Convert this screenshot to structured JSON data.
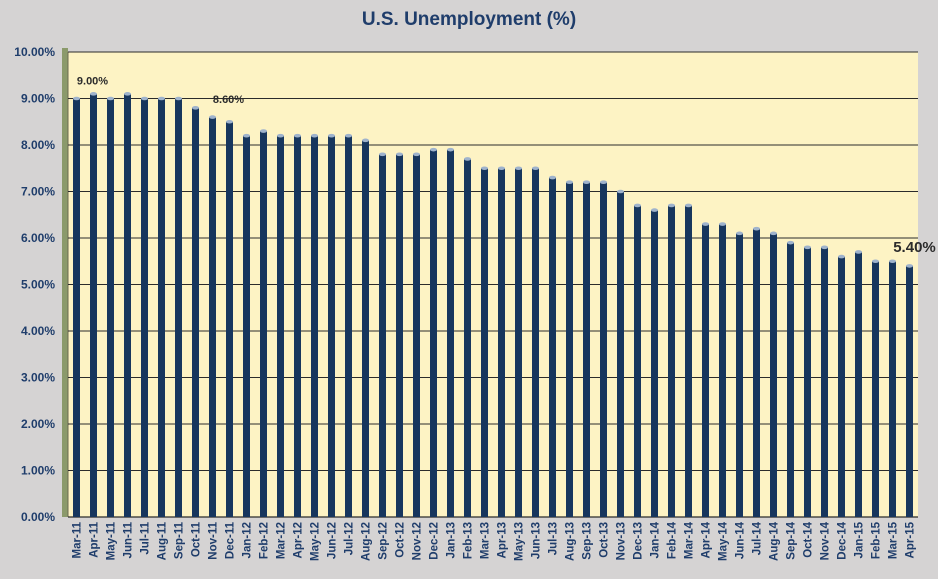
{
  "chart_data": {
    "type": "bar",
    "title": "U.S. Unemployment (%)",
    "xlabel": "",
    "ylabel": "",
    "ylim": [
      0,
      10
    ],
    "yticks": [
      {
        "value": 0,
        "label": "0.00%"
      },
      {
        "value": 1,
        "label": "1.00%"
      },
      {
        "value": 2,
        "label": "2.00%"
      },
      {
        "value": 3,
        "label": "3.00%"
      },
      {
        "value": 4,
        "label": "4.00%"
      },
      {
        "value": 5,
        "label": "5.00%"
      },
      {
        "value": 6,
        "label": "6.00%"
      },
      {
        "value": 7,
        "label": "7.00%"
      },
      {
        "value": 8,
        "label": "8.00%"
      },
      {
        "value": 9,
        "label": "9.00%"
      },
      {
        "value": 10,
        "label": "10.00%"
      }
    ],
    "grid": true,
    "legend": "none",
    "categories": [
      "Mar-11",
      "Apr-11",
      "May-11",
      "Jun-11",
      "Jul-11",
      "Aug-11",
      "Sep-11",
      "Oct-11",
      "Nov-11",
      "Dec-11",
      "Jan-12",
      "Feb-12",
      "Mar-12",
      "Apr-12",
      "May-12",
      "Jun-12",
      "Jul-12",
      "Aug-12",
      "Sep-12",
      "Oct-12",
      "Nov-12",
      "Dec-12",
      "Jan-13",
      "Feb-13",
      "Mar-13",
      "Apr-13",
      "May-13",
      "Jun-13",
      "Jul-13",
      "Aug-13",
      "Sep-13",
      "Oct-13",
      "Nov-13",
      "Dec-13",
      "Jan-14",
      "Feb-14",
      "Mar-14",
      "Apr-14",
      "May-14",
      "Jun-14",
      "Jul-14",
      "Aug-14",
      "Sep-14",
      "Oct-14",
      "Nov-14",
      "Dec-14",
      "Jan-15",
      "Feb-15",
      "Mar-15",
      "Apr-15"
    ],
    "xtick_labels": [
      "Mar-11",
      "Apr-11",
      "May-11",
      "Jun-11",
      "Jul-11",
      "Aug-11",
      "Sep-11",
      "Oct-11",
      "Nov-11",
      "Dec-11",
      "Jan-12",
      "Feb-12",
      "Mar-12",
      "Apr-12",
      "May-12",
      "Jun-12",
      "Jul-12",
      "Aug-12",
      "Sep-12",
      "Oct-12",
      "Nov-12",
      "Dec-12",
      "Jan-13",
      "Feb-13",
      "Mar-13",
      "Apr-13",
      "May-13",
      "Jun-13",
      "Jul-13",
      "Aug-13",
      "Sep-13",
      "Oct-13",
      "Nov-13",
      "Dec-13",
      "Jan-14",
      "Feb-14",
      "Mar-14",
      "Apr-14",
      "May-14",
      "Jun-14",
      "Jul-14",
      "Aug-14",
      "Sep-14",
      "Oct-14",
      "Nov-14",
      "Dec-14",
      "Jan-15",
      "Feb-15",
      "Mar-15",
      "Apr-15"
    ],
    "values": [
      9.0,
      9.1,
      9.0,
      9.1,
      9.0,
      9.0,
      9.0,
      8.8,
      8.6,
      8.5,
      8.2,
      8.3,
      8.2,
      8.2,
      8.2,
      8.2,
      8.2,
      8.1,
      7.8,
      7.8,
      7.8,
      7.9,
      7.9,
      7.7,
      7.5,
      7.5,
      7.5,
      7.5,
      7.3,
      7.2,
      7.2,
      7.2,
      7.0,
      6.7,
      6.6,
      6.7,
      6.7,
      6.3,
      6.3,
      6.1,
      6.2,
      6.1,
      5.9,
      5.8,
      5.8,
      5.6,
      5.7,
      5.5,
      5.5,
      5.4
    ],
    "annotations": [
      {
        "category": "Mar-11",
        "text": "9.00%",
        "size": "small"
      },
      {
        "category": "Nov-11",
        "text": "8.60%",
        "size": "small"
      },
      {
        "category": "Apr-15",
        "text": "5.40%",
        "size": "large"
      }
    ],
    "colors": {
      "background": "#d5d3d3",
      "plot_area": "#fdf3c4",
      "bar": "#17365d",
      "bar_highlight": "#9fb3cc",
      "gridline": "#2b2b2b",
      "axis_text": "#1f3d6b",
      "left_wall": "#8b9a6b"
    }
  }
}
